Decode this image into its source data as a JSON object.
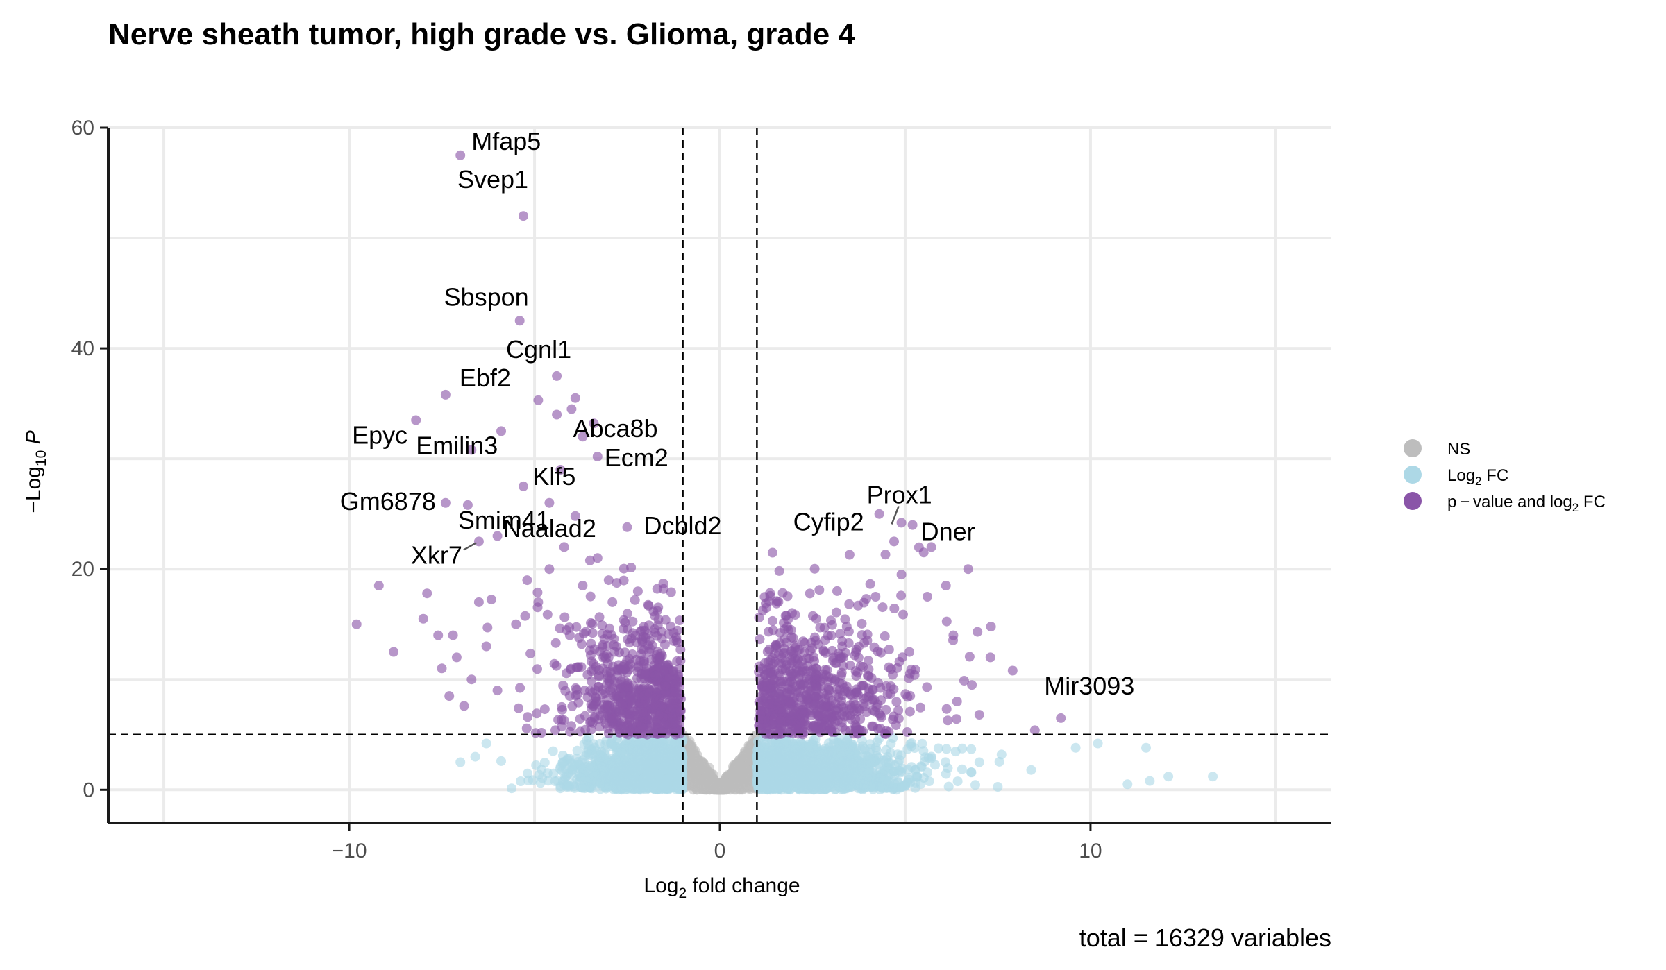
{
  "chart_data": {
    "type": "scatter",
    "subtype": "volcano",
    "title": "Nerve sheath tumor, high grade vs. Glioma, grade 4",
    "xlabel": {
      "main": "Log",
      "sub": "2",
      "rest": " fold change"
    },
    "ylabel": {
      "prefix": "−Log",
      "sub": "10",
      "rest": " P"
    },
    "caption": "total = 16329 variables",
    "xlim": [
      -16.5,
      16.5
    ],
    "ylim": [
      -3,
      60
    ],
    "x_ticks": [
      {
        "value": -10,
        "label": "−10"
      },
      {
        "value": 0,
        "label": "0"
      },
      {
        "value": 10,
        "label": "10"
      }
    ],
    "y_ticks": [
      {
        "value": 0,
        "label": "0"
      },
      {
        "value": 20,
        "label": "20"
      },
      {
        "value": 40,
        "label": "40"
      },
      {
        "value": 60,
        "label": "60"
      }
    ],
    "x_gridlines": [
      -15,
      -10,
      -5,
      0,
      5,
      10,
      15
    ],
    "y_gridlines": [
      0,
      10,
      20,
      30,
      40,
      50,
      60
    ],
    "grid": true,
    "cutoffs": {
      "log2fc": [
        -1,
        1
      ],
      "neg_log10_p": 5
    },
    "legend": {
      "position": "right",
      "entries": [
        {
          "key": "ns",
          "label": "NS",
          "color": "#bdbdbd"
        },
        {
          "key": "fc",
          "label_main": "Log",
          "label_sub": "2",
          "label_rest": " FC",
          "color": "#add8e6"
        },
        {
          "key": "both",
          "label_main": "p − value and log",
          "label_sub": "2",
          "label_rest": " FC",
          "color": "#8a55a8"
        }
      ]
    },
    "colors": {
      "ns": "#bdbdbd",
      "fc": "#add8e6",
      "both": "#8a55a8",
      "grid": "#ebebeb",
      "axis": "#1a1a1a"
    },
    "labeled_genes": [
      {
        "gene": "Mfap5",
        "x": -7.0,
        "y": 57.5
      },
      {
        "gene": "Svep1",
        "x": -5.3,
        "y": 52.0
      },
      {
        "gene": "Sbspon",
        "x": -5.4,
        "y": 42.5
      },
      {
        "gene": "Cgnl1",
        "x": -4.4,
        "y": 37.5
      },
      {
        "gene": "Ebf2",
        "x": -7.4,
        "y": 35.8
      },
      {
        "gene": "Abca8b",
        "x": -3.4,
        "y": 33.2
      },
      {
        "gene": "Epyc",
        "x": -8.2,
        "y": 33.5
      },
      {
        "gene": "Ecm2",
        "x": -3.3,
        "y": 30.2
      },
      {
        "gene": "Klf5",
        "x": -4.3,
        "y": 29.0
      },
      {
        "gene": "Emilin3",
        "x": -6.7,
        "y": 30.8
      },
      {
        "gene": "Naalad2",
        "x": -3.9,
        "y": 24.8
      },
      {
        "gene": "Gm6878",
        "x": -7.4,
        "y": 26.0
      },
      {
        "gene": "Smim41",
        "x": -6.8,
        "y": 25.8
      },
      {
        "gene": "Dcbld2",
        "x": -2.5,
        "y": 23.8
      },
      {
        "gene": "Xkr7",
        "x": -6.5,
        "y": 22.5
      },
      {
        "gene": "Prox1",
        "x": 4.9,
        "y": 24.2
      },
      {
        "gene": "Cyfip2",
        "x": 4.3,
        "y": 25.0
      },
      {
        "gene": "Dner",
        "x": 5.2,
        "y": 24.0
      },
      {
        "gene": "Mir3093",
        "x": 9.2,
        "y": 6.5
      }
    ]
  }
}
